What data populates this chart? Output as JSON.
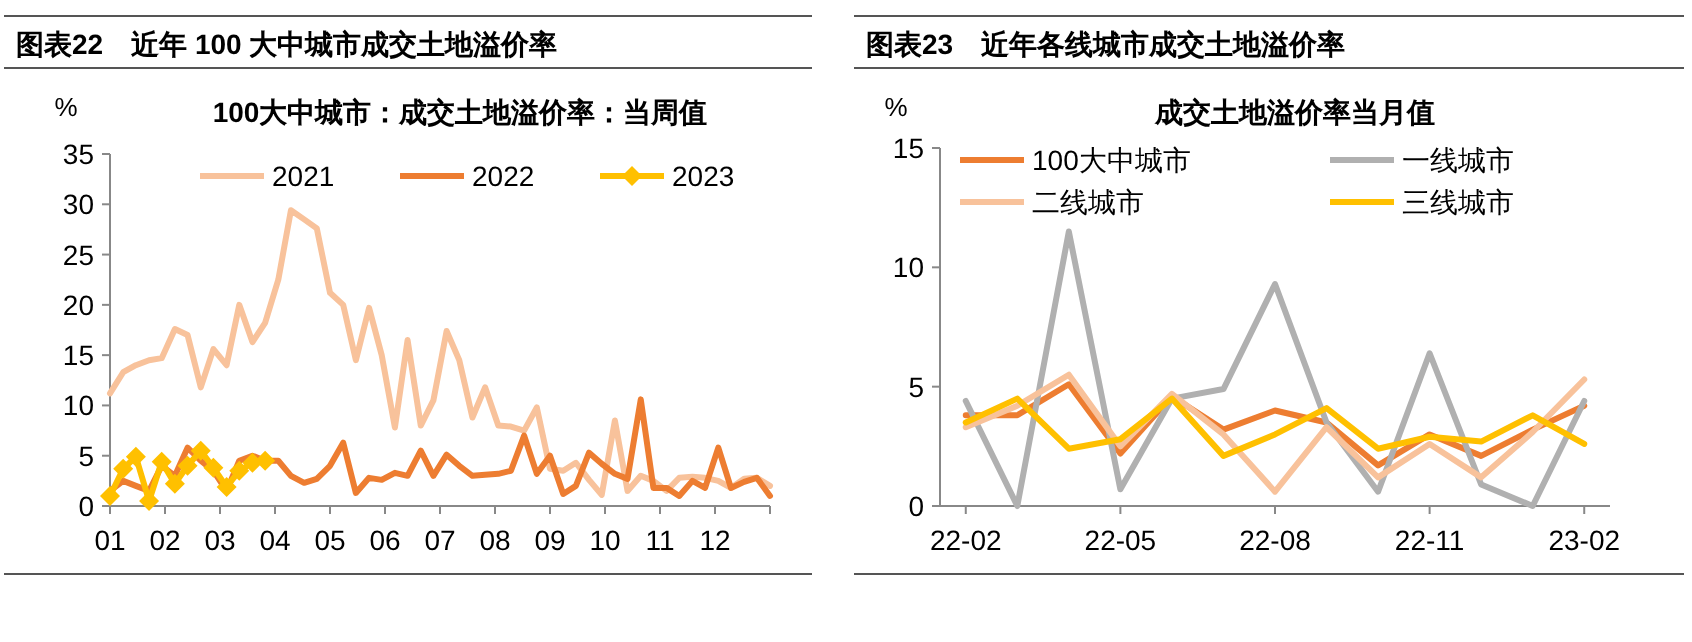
{
  "chart_data": [
    {
      "type": "line",
      "title": "图表22　近年 100 大中城市成交土地溢价率",
      "subtitle": "100大中城市：成交土地溢价率：当周值",
      "ylabel": "%",
      "x": [
        1,
        1.24,
        1.47,
        1.71,
        1.94,
        2.18,
        2.41,
        2.65,
        2.88,
        3.12,
        3.35,
        3.59,
        3.82,
        4.06,
        4.29,
        4.53,
        4.76,
        5,
        5.24,
        5.47,
        5.71,
        5.94,
        6.18,
        6.41,
        6.65,
        6.88,
        7.12,
        7.35,
        7.59,
        7.82,
        8.06,
        8.29,
        8.53,
        8.76,
        9,
        9.24,
        9.47,
        9.71,
        9.94,
        10.18,
        10.41,
        10.65,
        10.88,
        11.12,
        11.35,
        11.59,
        11.82,
        12.06,
        12.29,
        12.53,
        12.76,
        13
      ],
      "series": [
        {
          "name": "2021",
          "color": "#f8c29b",
          "marker": "none",
          "values": [
            11.2,
            13.3,
            14.0,
            14.5,
            14.7,
            17.6,
            17.0,
            11.8,
            15.6,
            14.0,
            20.0,
            16.3,
            18.2,
            22.5,
            29.4,
            28.5,
            27.6,
            21.2,
            20.0,
            14.5,
            19.7,
            15.0,
            7.8,
            16.5,
            8.0,
            10.5,
            17.4,
            14.5,
            8.8,
            11.8,
            8.0,
            7.9,
            7.5,
            9.8,
            3.7,
            3.5,
            4.3,
            2.6,
            1.1,
            8.5,
            1.5,
            3.0,
            2.5,
            1.5,
            2.8,
            2.9,
            2.8,
            2.5,
            1.8,
            2.7,
            2.8,
            2.0
          ]
        },
        {
          "name": "2022",
          "color": "#ed7d31",
          "marker": "none",
          "values": [
            1.5,
            2.5,
            2.0,
            1.5,
            4.0,
            3.0,
            5.8,
            4.5,
            3.5,
            1.5,
            4.5,
            5.0,
            4.5,
            4.5,
            3.0,
            2.3,
            2.7,
            4.0,
            6.3,
            1.3,
            2.8,
            2.6,
            3.3,
            3.0,
            5.5,
            3.0,
            5.1,
            4.0,
            3.0,
            3.1,
            3.2,
            3.5,
            7.0,
            3.2,
            5.0,
            1.2,
            2.0,
            5.3,
            4.2,
            3.2,
            2.7,
            10.6,
            1.8,
            1.8,
            1.0,
            2.5,
            1.8,
            5.8,
            1.8,
            2.4,
            2.8,
            1.0
          ]
        },
        {
          "name": "2023",
          "color": "#ffc000",
          "marker": "diamond",
          "values": [
            1.0,
            3.7,
            4.9,
            0.5,
            4.4,
            2.2,
            4.0,
            5.5,
            3.8,
            1.9,
            3.5,
            4.3,
            4.5,
            null,
            null,
            null,
            null,
            null,
            null,
            null,
            null,
            null,
            null,
            null,
            null,
            null,
            null,
            null,
            null,
            null,
            null,
            null,
            null,
            null,
            null,
            null,
            null,
            null,
            null,
            null,
            null,
            null,
            null,
            null,
            null,
            null,
            null,
            null,
            null,
            null,
            null,
            null
          ]
        }
      ],
      "xlim": [
        1,
        13
      ],
      "xticks": [
        {
          "value": 1,
          "label": "01"
        },
        {
          "value": 2,
          "label": "02"
        },
        {
          "value": 3,
          "label": "03"
        },
        {
          "value": 4,
          "label": "04"
        },
        {
          "value": 5,
          "label": "05"
        },
        {
          "value": 6,
          "label": "06"
        },
        {
          "value": 7,
          "label": "07"
        },
        {
          "value": 8,
          "label": "08"
        },
        {
          "value": 9,
          "label": "09"
        },
        {
          "value": 10,
          "label": "10"
        },
        {
          "value": 11,
          "label": "11"
        },
        {
          "value": 12,
          "label": "12"
        },
        {
          "value": 13,
          "label": null
        }
      ],
      "ylim": [
        0,
        35
      ],
      "yticks": [
        0,
        5,
        10,
        15,
        20,
        25,
        30,
        35
      ],
      "grid": false,
      "legend": "top"
    },
    {
      "type": "line",
      "title": "图表23　近年各线城市成交土地溢价率",
      "subtitle": "成交土地溢价率当月值",
      "ylabel": "%",
      "categories": [
        "22-02",
        null,
        null,
        "22-05",
        null,
        null,
        "22-08",
        null,
        null,
        "22-11",
        null,
        null,
        "23-02"
      ],
      "series": [
        {
          "name": "100大中城市",
          "color": "#ed7d31",
          "values": [
            3.8,
            3.8,
            5.1,
            2.2,
            4.6,
            3.2,
            4.0,
            3.5,
            1.7,
            3.0,
            2.1,
            3.2,
            4.2
          ]
        },
        {
          "name": "一线城市",
          "color": "#b0b0b0",
          "values": [
            4.4,
            0,
            11.5,
            0.7,
            4.5,
            4.9,
            9.3,
            3.5,
            0.6,
            6.4,
            0.9,
            0,
            4.4
          ]
        },
        {
          "name": "二线城市",
          "color": "#f8c29b",
          "values": [
            3.3,
            4.2,
            5.5,
            2.5,
            4.7,
            3.0,
            0.6,
            3.3,
            1.2,
            2.6,
            1.2,
            3.1,
            5.3
          ]
        },
        {
          "name": "三线城市",
          "color": "#ffc000",
          "values": [
            3.5,
            4.5,
            2.4,
            2.8,
            4.5,
            2.1,
            3.0,
            4.1,
            2.4,
            2.9,
            2.7,
            3.8,
            2.6
          ]
        }
      ],
      "ylim": [
        0,
        15
      ],
      "yticks": [
        0,
        5,
        10,
        15
      ],
      "grid": false,
      "legend": "top"
    }
  ]
}
